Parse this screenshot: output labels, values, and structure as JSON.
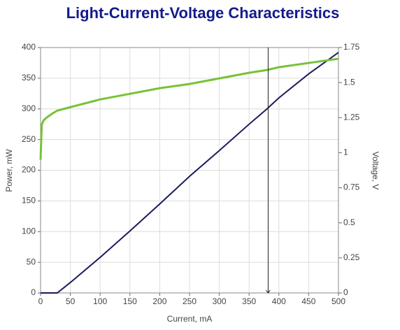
{
  "chart_data": {
    "type": "line",
    "title": "Light-Current-Voltage Characteristics",
    "x_label": "Current, mA",
    "y_label": "Power, mW",
    "y2_label": "Voltage, V",
    "x": [
      0,
      2,
      5,
      10,
      20,
      28,
      50,
      100,
      150,
      200,
      250,
      300,
      350,
      380,
      400,
      450,
      500
    ],
    "series": [
      {
        "name": "Power",
        "color": "#1b1b5e",
        "values": [
          0,
          0,
          0,
          0,
          0,
          0,
          17,
          58,
          101,
          145,
          190,
          232,
          275,
          300,
          318,
          357,
          392
        ]
      },
      {
        "name": "Voltage",
        "color": "#77c236",
        "axis": "y2",
        "values": [
          0.95,
          1.2,
          1.23,
          1.25,
          1.28,
          1.3,
          1.325,
          1.38,
          1.42,
          1.46,
          1.49,
          1.53,
          1.57,
          1.59,
          1.61,
          1.64,
          1.67
        ]
      }
    ],
    "xlim": [
      0,
      500
    ],
    "xticks": [
      0,
      50,
      100,
      150,
      200,
      250,
      300,
      350,
      400,
      450,
      500
    ],
    "ylim": [
      0,
      400
    ],
    "yticks": [
      0,
      50,
      100,
      150,
      200,
      250,
      300,
      350,
      400
    ],
    "y2lim": [
      0,
      1.75
    ],
    "y2ticks": [
      0,
      0.25,
      0.5,
      0.75,
      1,
      1.25,
      1.5,
      1.75
    ],
    "cursor_x": 382,
    "grid": true
  }
}
